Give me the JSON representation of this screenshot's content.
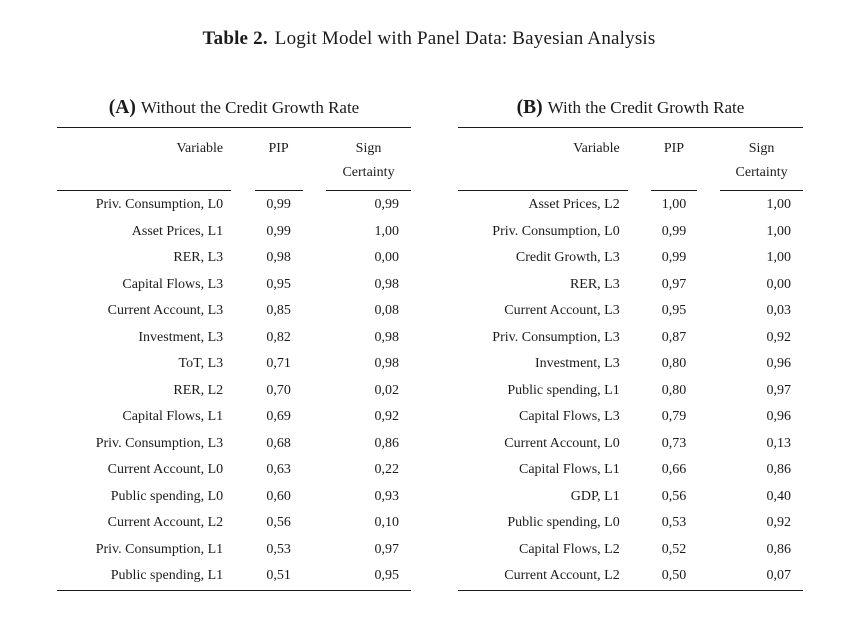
{
  "title": {
    "label": "Table 2.",
    "text": "Logit Model with Panel Data: Bayesian Analysis"
  },
  "colors": {
    "background": "#ffffff",
    "text": "#1b1b1b",
    "rule": "#1b1b1b"
  },
  "panels": [
    {
      "label": "(A)",
      "title": "Without the Credit Growth Rate",
      "columns": {
        "variable": "Variable",
        "pip": "PIP",
        "sign_line1": "Sign",
        "sign_line2": "Certainty"
      },
      "rows": [
        {
          "variable": "Priv. Consumption, L0",
          "pip": "0,99",
          "sign": "0,99"
        },
        {
          "variable": "Asset Prices, L1",
          "pip": "0,99",
          "sign": "1,00"
        },
        {
          "variable": "RER, L3",
          "pip": "0,98",
          "sign": "0,00"
        },
        {
          "variable": "Capital Flows, L3",
          "pip": "0,95",
          "sign": "0,98"
        },
        {
          "variable": "Current Account, L3",
          "pip": "0,85",
          "sign": "0,08"
        },
        {
          "variable": "Investment, L3",
          "pip": "0,82",
          "sign": "0,98"
        },
        {
          "variable": "ToT, L3",
          "pip": "0,71",
          "sign": "0,98"
        },
        {
          "variable": "RER, L2",
          "pip": "0,70",
          "sign": "0,02"
        },
        {
          "variable": "Capital Flows, L1",
          "pip": "0,69",
          "sign": "0,92"
        },
        {
          "variable": "Priv. Consumption, L3",
          "pip": "0,68",
          "sign": "0,86"
        },
        {
          "variable": "Current Account, L0",
          "pip": "0,63",
          "sign": "0,22"
        },
        {
          "variable": "Public spending, L0",
          "pip": "0,60",
          "sign": "0,93"
        },
        {
          "variable": "Current Account, L2",
          "pip": "0,56",
          "sign": "0,10"
        },
        {
          "variable": "Priv. Consumption, L1",
          "pip": "0,53",
          "sign": "0,97"
        },
        {
          "variable": "Public spending, L1",
          "pip": "0,51",
          "sign": "0,95"
        }
      ]
    },
    {
      "label": "(B)",
      "title": "With the Credit Growth Rate",
      "columns": {
        "variable": "Variable",
        "pip": "PIP",
        "sign_line1": "Sign",
        "sign_line2": "Certainty"
      },
      "rows": [
        {
          "variable": "Asset Prices, L2",
          "pip": "1,00",
          "sign": "1,00"
        },
        {
          "variable": "Priv. Consumption, L0",
          "pip": "0,99",
          "sign": "1,00"
        },
        {
          "variable": "Credit Growth, L3",
          "pip": "0,99",
          "sign": "1,00"
        },
        {
          "variable": "RER, L3",
          "pip": "0,97",
          "sign": "0,00"
        },
        {
          "variable": "Current Account, L3",
          "pip": "0,95",
          "sign": "0,03"
        },
        {
          "variable": "Priv. Consumption, L3",
          "pip": "0,87",
          "sign": "0,92"
        },
        {
          "variable": "Investment, L3",
          "pip": "0,80",
          "sign": "0,96"
        },
        {
          "variable": "Public spending, L1",
          "pip": "0,80",
          "sign": "0,97"
        },
        {
          "variable": "Capital Flows, L3",
          "pip": "0,79",
          "sign": "0,96"
        },
        {
          "variable": "Current Account, L0",
          "pip": "0,73",
          "sign": "0,13"
        },
        {
          "variable": "Capital Flows, L1",
          "pip": "0,66",
          "sign": "0,86"
        },
        {
          "variable": "GDP, L1",
          "pip": "0,56",
          "sign": "0,40"
        },
        {
          "variable": "Public spending, L0",
          "pip": "0,53",
          "sign": "0,92"
        },
        {
          "variable": "Capital Flows, L2",
          "pip": "0,52",
          "sign": "0,86"
        },
        {
          "variable": "Current Account, L2",
          "pip": "0,50",
          "sign": "0,07"
        }
      ]
    }
  ]
}
